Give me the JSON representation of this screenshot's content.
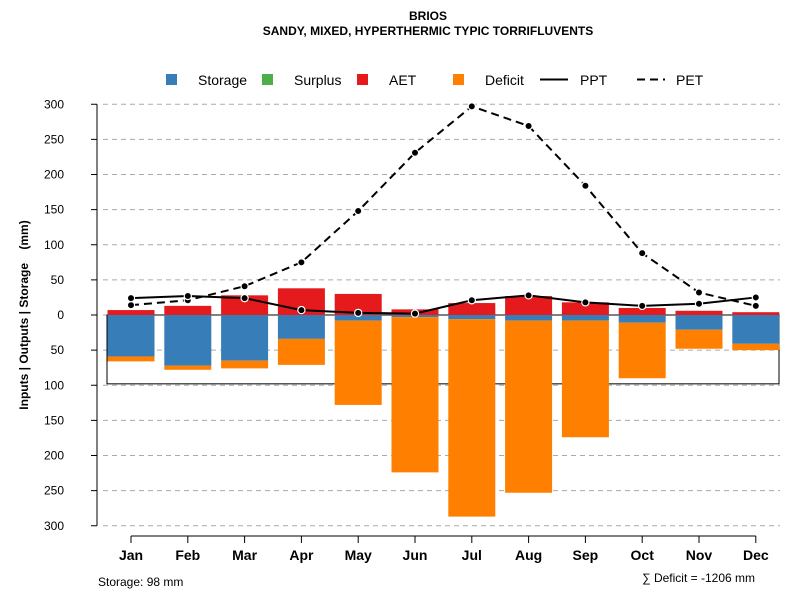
{
  "chart_data": {
    "type": "bar",
    "title": "BRIOS",
    "subtitle": "SANDY, MIXED, HYPERTHERMIC TYPIC TORRIFLUVENTS",
    "ylabel": "Inputs | Outputs | Storage    (mm)",
    "ylim": [
      -300,
      300
    ],
    "yticks": [
      300,
      250,
      200,
      150,
      100,
      50,
      0,
      50,
      100,
      150,
      200,
      250,
      300
    ],
    "categories": [
      "Jan",
      "Feb",
      "Mar",
      "Apr",
      "May",
      "Jun",
      "Jul",
      "Aug",
      "Sep",
      "Oct",
      "Nov",
      "Dec"
    ],
    "legend": [
      {
        "name": "Storage",
        "kind": "box",
        "color": "#377EB8"
      },
      {
        "name": "Surplus",
        "kind": "box",
        "color": "#4DAF4A"
      },
      {
        "name": "AET",
        "kind": "box",
        "color": "#E41A1C"
      },
      {
        "name": "Deficit",
        "kind": "box",
        "color": "#FF7F00"
      },
      {
        "name": "PPT",
        "kind": "solid",
        "color": "#000000"
      },
      {
        "name": "PET",
        "kind": "dashed",
        "color": "#000000"
      }
    ],
    "series": [
      {
        "name": "AET",
        "color": "#E41A1C",
        "values": [
          7,
          13,
          28,
          38,
          30,
          8,
          17,
          27,
          18,
          10,
          6,
          4
        ]
      },
      {
        "name": "Storage",
        "color": "#377EB8",
        "values": [
          -59,
          -72,
          -65,
          -34,
          -8,
          -3,
          -6,
          -8,
          -8,
          -11,
          -21,
          -41
        ]
      },
      {
        "name": "Deficit",
        "color": "#FF7F00",
        "values": [
          -7,
          -6,
          -11,
          -37,
          -120,
          -221,
          -281,
          -245,
          -166,
          -79,
          -27,
          -9
        ]
      },
      {
        "name": "PPT",
        "color": "#000000",
        "values": [
          24,
          27,
          24,
          7,
          3,
          2,
          21,
          28,
          18,
          13,
          16,
          25
        ]
      },
      {
        "name": "PET",
        "color": "#000000",
        "values": [
          14,
          21,
          41,
          75,
          148,
          231,
          297,
          269,
          184,
          88,
          32,
          13
        ]
      }
    ],
    "storage_capacity": 98
  },
  "footer": {
    "storage": "Storage: 98 mm",
    "deficit": "∑ Deficit = -1206 mm"
  }
}
